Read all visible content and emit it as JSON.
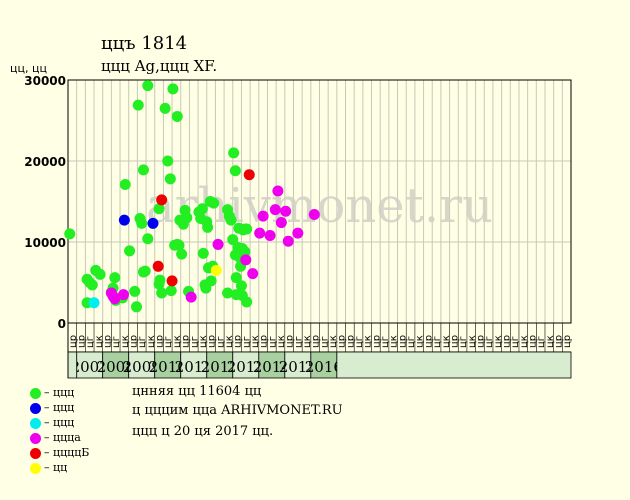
{
  "header": {
    "title": "ццъ 1814",
    "subtitle": "ццц Ag,ццц XF.",
    "unit": "цц, цц"
  },
  "watermark": "arhivmonet.ru",
  "legend": [
    {
      "label": "– ццц",
      "color": "#22ee22"
    },
    {
      "label": "– ццц",
      "color": "#0000ee"
    },
    {
      "label": "– ццц",
      "color": "#00eeee"
    },
    {
      "label": "– ццца",
      "color": "#ee00ee"
    },
    {
      "label": "– ццццБ",
      "color": "#ee0000"
    },
    {
      "label": "– цц",
      "color": "#ffff00"
    }
  ],
  "notes": [
    "цнняя цц 11604 цц",
    "ц цццим цца ARHIVMONET.RU",
    "ццц ц 20 ця 2017 цц."
  ],
  "colors": {
    "background": "#ffffe5",
    "plot_background": "#ffffe5",
    "grid": "#c8c8b8",
    "year_band_a": "#d8ecd0",
    "year_band_b": "#a8d0a0"
  },
  "chart_data": {
    "type": "scatter",
    "title": "ццъ 1814",
    "ylabel": "цц, цц",
    "ylim": [
      0,
      30000
    ],
    "yticks": [
      0,
      10000,
      20000,
      30000
    ],
    "grid": true,
    "quarters": [
      "цр",
      "цр",
      "цг",
      "цк",
      "цр",
      "цг",
      "цк",
      "цр",
      "цг",
      "цк",
      "цр",
      "цг",
      "цк",
      "цр",
      "цг",
      "цк",
      "цр",
      "цг",
      "цк",
      "цр",
      "цг",
      "цк",
      "цр",
      "цг",
      "цк",
      "цр",
      "цг",
      "цк",
      "цр",
      "цг",
      "цк",
      "цр",
      "цр",
      "цг",
      "цк",
      "цр",
      "цг",
      "цк",
      "цр",
      "цг",
      "цк",
      "цр",
      "цг",
      "цк",
      "цр",
      "цг",
      "цк",
      "цр",
      "цг",
      "цк",
      "цр",
      "цг",
      "цк",
      "цр",
      "цг",
      "цк",
      "цр",
      "цр"
    ],
    "years": [
      {
        "label": "2007",
        "start": 1,
        "end": 4
      },
      {
        "label": "2008",
        "start": 4,
        "end": 7
      },
      {
        "label": "2009",
        "start": 7,
        "end": 10
      },
      {
        "label": "2010",
        "start": 10,
        "end": 13
      },
      {
        "label": "2011",
        "start": 13,
        "end": 16
      },
      {
        "label": "2012",
        "start": 16,
        "end": 19
      },
      {
        "label": "2013",
        "start": 19,
        "end": 22
      },
      {
        "label": "2014",
        "start": 22,
        "end": 25
      },
      {
        "label": "2015",
        "start": 25,
        "end": 28
      },
      {
        "label": "2016",
        "start": 28,
        "end": 31
      }
    ],
    "series": [
      {
        "color": "#22ee22",
        "points": [
          [
            0.2,
            11000
          ],
          [
            2.2,
            2500
          ],
          [
            2.2,
            5400
          ],
          [
            2.5,
            5000
          ],
          [
            2.8,
            4700
          ],
          [
            3.2,
            6500
          ],
          [
            3.7,
            6000
          ],
          [
            5.0,
            3800
          ],
          [
            5.2,
            4300
          ],
          [
            5.4,
            5600
          ],
          [
            5.5,
            2800
          ],
          [
            6.3,
            3100
          ],
          [
            6.6,
            17100
          ],
          [
            7.1,
            8900
          ],
          [
            7.7,
            3900
          ],
          [
            7.9,
            2000
          ],
          [
            8.1,
            26900
          ],
          [
            8.3,
            12900
          ],
          [
            8.5,
            12300
          ],
          [
            8.7,
            18900
          ],
          [
            8.7,
            6300
          ],
          [
            8.9,
            6400
          ],
          [
            9.2,
            29300
          ],
          [
            9.2,
            10400
          ],
          [
            10.5,
            4800
          ],
          [
            10.5,
            14100
          ],
          [
            10.6,
            5300
          ],
          [
            10.8,
            3700
          ],
          [
            11.2,
            26500
          ],
          [
            11.5,
            20000
          ],
          [
            11.8,
            17800
          ],
          [
            11.9,
            4000
          ],
          [
            12.1,
            28900
          ],
          [
            12.3,
            9600
          ],
          [
            12.6,
            25500
          ],
          [
            12.6,
            9700
          ],
          [
            12.8,
            9600
          ],
          [
            12.9,
            12700
          ],
          [
            13.1,
            8500
          ],
          [
            13.3,
            12200
          ],
          [
            13.5,
            13900
          ],
          [
            13.7,
            13000
          ],
          [
            13.9,
            3900
          ],
          [
            15.1,
            13700
          ],
          [
            15.3,
            12900
          ],
          [
            15.5,
            14100
          ],
          [
            15.6,
            8600
          ],
          [
            15.8,
            4700
          ],
          [
            15.9,
            4300
          ],
          [
            16.0,
            12500
          ],
          [
            16.1,
            11800
          ],
          [
            16.2,
            6800
          ],
          [
            16.4,
            15000
          ],
          [
            16.5,
            5200
          ],
          [
            16.7,
            7000
          ],
          [
            16.8,
            14800
          ],
          [
            18.4,
            3700
          ],
          [
            18.4,
            14000
          ],
          [
            18.6,
            13200
          ],
          [
            18.8,
            12700
          ],
          [
            19.0,
            10300
          ],
          [
            19.1,
            21000
          ],
          [
            19.3,
            18800
          ],
          [
            19.3,
            8400
          ],
          [
            19.4,
            5600
          ],
          [
            19.4,
            3500
          ],
          [
            19.6,
            9300
          ],
          [
            19.7,
            11700
          ],
          [
            19.8,
            8100
          ],
          [
            19.9,
            7000
          ],
          [
            20.0,
            4600
          ],
          [
            20.1,
            9200
          ],
          [
            20.1,
            3400
          ],
          [
            20.2,
            11500
          ],
          [
            20.4,
            8800
          ],
          [
            20.4,
            11600
          ],
          [
            20.6,
            11600
          ],
          [
            20.6,
            2600
          ]
        ]
      },
      {
        "color": "#0000ee",
        "points": [
          [
            6.5,
            12700
          ],
          [
            9.8,
            12300
          ]
        ]
      },
      {
        "color": "#00eeee",
        "points": [
          [
            3.0,
            2500
          ]
        ]
      },
      {
        "color": "#ee00ee",
        "points": [
          [
            5.0,
            3700
          ],
          [
            5.2,
            3300
          ],
          [
            5.4,
            3000
          ],
          [
            6.4,
            3500
          ],
          [
            14.2,
            3200
          ],
          [
            17.3,
            9700
          ],
          [
            20.5,
            7800
          ],
          [
            21.3,
            6100
          ],
          [
            22.1,
            11100
          ],
          [
            22.5,
            13200
          ],
          [
            23.3,
            10800
          ],
          [
            23.9,
            14000
          ],
          [
            24.2,
            16300
          ],
          [
            24.6,
            12400
          ],
          [
            25.1,
            13800
          ],
          [
            25.4,
            10100
          ],
          [
            26.5,
            11100
          ],
          [
            28.4,
            13400
          ]
        ]
      },
      {
        "color": "#ee0000",
        "points": [
          [
            10.4,
            7000
          ],
          [
            10.8,
            15200
          ],
          [
            12.0,
            5200
          ],
          [
            20.9,
            18300
          ]
        ]
      },
      {
        "color": "#ffff00",
        "points": [
          [
            17.1,
            6500
          ]
        ]
      }
    ]
  }
}
